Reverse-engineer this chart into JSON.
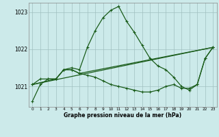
{
  "bg_color": "#cceaea",
  "grid_color": "#a0c0c0",
  "line_color": "#1a5c1a",
  "marker_color": "#1a5c1a",
  "title": "Graphe pression niveau de la mer (hPa)",
  "yticks": [
    1021,
    1022,
    1023
  ],
  "ylim": [
    1020.45,
    1023.25
  ],
  "xlim": [
    -0.5,
    23.5
  ],
  "xticks": [
    0,
    1,
    2,
    3,
    4,
    5,
    6,
    7,
    8,
    9,
    10,
    11,
    12,
    13,
    14,
    15,
    16,
    17,
    18,
    19,
    20,
    21,
    22,
    23
  ],
  "series1": {
    "x": [
      0,
      1,
      2,
      3,
      4,
      5,
      6,
      7,
      8,
      9,
      10,
      11,
      12,
      13,
      14,
      15,
      16,
      17,
      18,
      19,
      20,
      21,
      22,
      23
    ],
    "y": [
      1020.6,
      1021.05,
      1021.2,
      1021.2,
      1021.45,
      1021.5,
      1021.45,
      1022.05,
      1022.5,
      1022.85,
      1023.05,
      1023.15,
      1022.75,
      1022.45,
      1022.1,
      1021.75,
      1021.55,
      1021.45,
      1021.25,
      1021.0,
      1020.9,
      1021.05,
      1021.75,
      1022.05
    ]
  },
  "series2": {
    "x": [
      0,
      1,
      2,
      3,
      4,
      5,
      6,
      7,
      8,
      9,
      10,
      11,
      12,
      13,
      14,
      15,
      16,
      17,
      18,
      19,
      20,
      21,
      22,
      23
    ],
    "y": [
      1021.05,
      1021.2,
      1021.2,
      1021.2,
      1021.45,
      1021.45,
      1021.35,
      1021.3,
      1021.25,
      1021.15,
      1021.05,
      1021.0,
      1020.95,
      1020.9,
      1020.85,
      1020.85,
      1020.9,
      1021.0,
      1021.05,
      1020.95,
      1020.95,
      1021.05,
      1021.75,
      1022.05
    ]
  },
  "series3": {
    "x": [
      0,
      3,
      4,
      5,
      6,
      23
    ],
    "y": [
      1021.05,
      1021.2,
      1021.45,
      1021.45,
      1021.35,
      1022.05
    ]
  },
  "series4": {
    "x": [
      0,
      23
    ],
    "y": [
      1021.05,
      1022.05
    ]
  }
}
